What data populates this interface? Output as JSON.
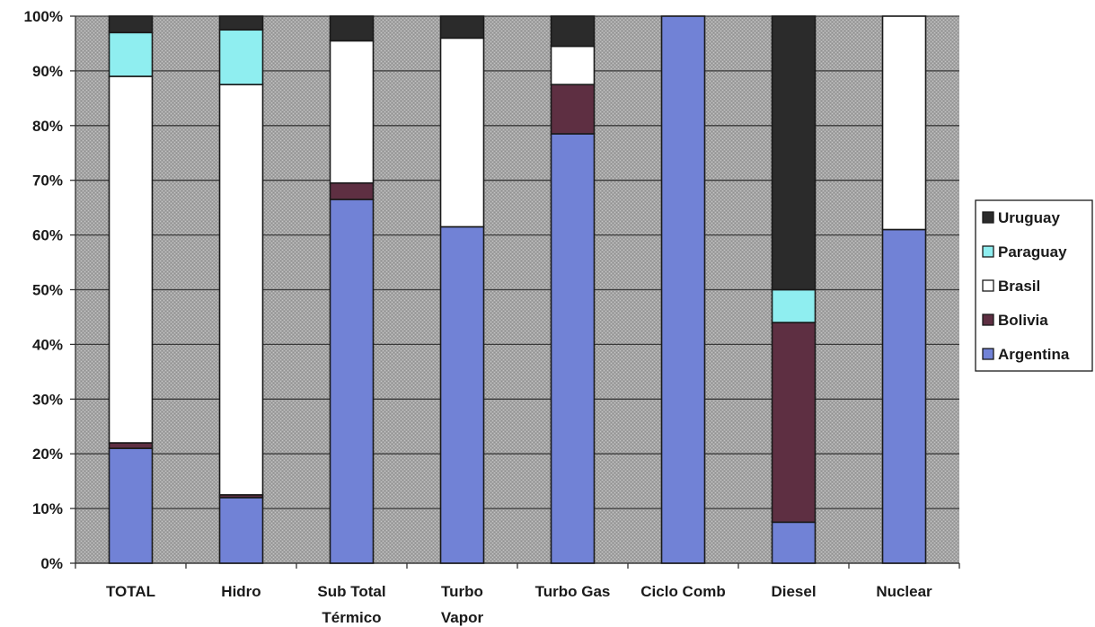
{
  "chart_data": {
    "type": "bar",
    "stacked": true,
    "percent": true,
    "categories": [
      "TOTAL",
      "Hidro",
      "Sub Total\nTérmico",
      "Turbo\nVapor",
      "Turbo Gas",
      "Ciclo Comb",
      "Diesel",
      "Nuclear"
    ],
    "series": [
      {
        "name": "Argentina",
        "color": "#7182d6",
        "values": [
          21,
          12,
          66.5,
          61.5,
          78.5,
          100,
          7.5,
          61
        ]
      },
      {
        "name": "Bolivia",
        "color": "#5e2f42",
        "values": [
          1,
          0.5,
          3,
          0,
          9,
          0,
          36.5,
          0
        ]
      },
      {
        "name": "Brasil",
        "color": "#ffffff",
        "values": [
          67,
          75,
          26,
          34.5,
          7,
          0,
          0,
          39
        ]
      },
      {
        "name": "Paraguay",
        "color": "#8feef0",
        "values": [
          8,
          10,
          0,
          0,
          0,
          0,
          6,
          0
        ]
      },
      {
        "name": "Uruguay",
        "color": "#2b2b2b",
        "values": [
          3,
          2.5,
          4.5,
          4,
          5.5,
          0,
          50,
          0
        ]
      }
    ],
    "y_ticks": [
      "0%",
      "10%",
      "20%",
      "30%",
      "40%",
      "50%",
      "60%",
      "70%",
      "80%",
      "90%",
      "100%"
    ],
    "ylim": [
      0,
      100
    ],
    "grid": true,
    "legend_position": "right",
    "legend_order": [
      "Uruguay",
      "Paraguay",
      "Brasil",
      "Bolivia",
      "Argentina"
    ],
    "plot_background": "#a9a9a9"
  }
}
